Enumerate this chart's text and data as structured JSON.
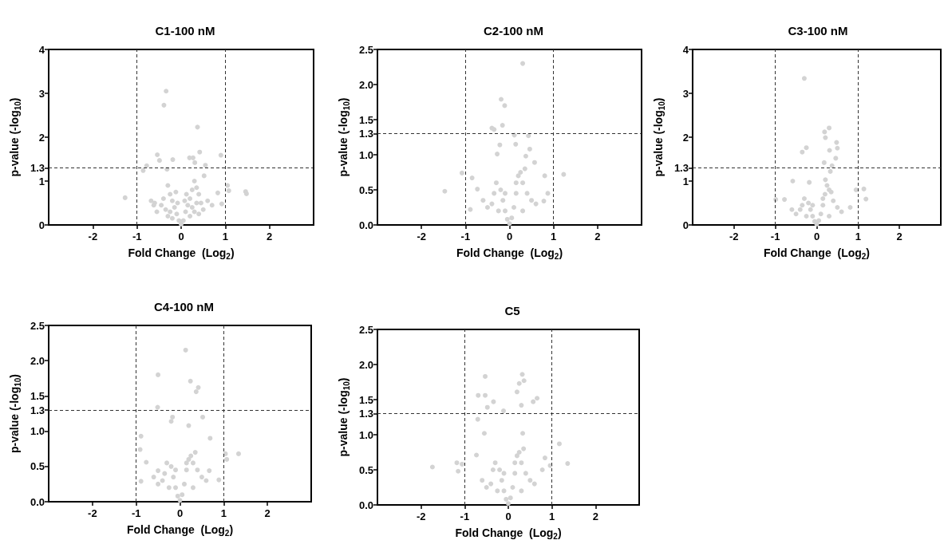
{
  "chart_data": [
    {
      "type": "scatter",
      "title": "C1-100 nM",
      "xlabel": "Fold Change  (Log$_{2}$)",
      "ylabel": "p-value (-log$_{10}$)",
      "color": "#d3d3d3",
      "marker": "circle",
      "grid": false,
      "x": [
        -0.34,
        -0.39,
        0.37,
        0.42,
        0.9,
        -0.54,
        0.19,
        0.27,
        -0.19,
        -0.49,
        -0.78,
        0.55,
        -0.86,
        1.05,
        1.08,
        1.46,
        1.48,
        -1.27,
        0.31,
        -0.32,
        0.52,
        0.83,
        0.92,
        -0.68,
        -0.62,
        -0.3,
        -0.25,
        -0.2,
        -0.15,
        -0.1,
        -0.05,
        0,
        0.05,
        0.1,
        0.15,
        0.2,
        0.25,
        0.3,
        0.35,
        0.4,
        0.45,
        -0.4,
        -0.45,
        -0.35,
        -0.3,
        -0.2,
        0.2,
        0.3,
        0.4,
        0.5,
        0.6,
        0.7,
        -0.55,
        -0.6,
        0.25,
        -0.25,
        0.12,
        -0.12,
        0.35,
        -0.08,
        0.08
      ],
      "values": [
        3.05,
        2.73,
        2.23,
        1.66,
        1.59,
        1.6,
        1.53,
        1.53,
        1.49,
        1.47,
        1.35,
        1.36,
        1.24,
        0.9,
        0.78,
        0.76,
        0.71,
        0.62,
        1.42,
        1.27,
        1.12,
        0.73,
        0.48,
        0.55,
        0.45,
        0.9,
        0.7,
        0.55,
        0.4,
        0.25,
        0.1,
        0.02,
        0.1,
        0.3,
        0.45,
        0.6,
        0.8,
        1.0,
        0.85,
        0.7,
        0.5,
        0.6,
        0.45,
        0.35,
        0.2,
        0.15,
        0.2,
        0.3,
        0.25,
        0.35,
        0.55,
        0.45,
        0.3,
        0.5,
        0.4,
        0.3,
        0.7,
        0.75,
        0.5,
        0.5,
        0.55
      ],
      "xlim": [
        -3,
        3
      ],
      "xticks": [
        -2,
        -1,
        0,
        1,
        2
      ],
      "ylim": [
        0,
        4
      ],
      "yticks": [
        0,
        1,
        {
          "value": 1.3,
          "label": "1.3"
        },
        2,
        3,
        4
      ],
      "ref_lines": [
        {
          "axis": "x",
          "value": -1,
          "color": "#333333",
          "line_style": "dashed"
        },
        {
          "axis": "x",
          "value": 1,
          "color": "#333333",
          "line_style": "dashed"
        },
        {
          "axis": "y",
          "value": 1.3,
          "color": "#333333",
          "line_style": "dashed"
        }
      ]
    },
    {
      "type": "scatter",
      "title": "C2-100 nM",
      "xlabel": "Fold Change  (Log$_{2}$)",
      "ylabel": "p-value (-log$_{10}$)",
      "color": "#d3d3d3",
      "marker": "circle",
      "grid": false,
      "x": [
        0.3,
        -0.19,
        -0.11,
        -0.16,
        -0.4,
        -0.35,
        0.11,
        0.43,
        -0.22,
        0.14,
        0.46,
        -0.28,
        1.23,
        -1.08,
        -1.47,
        -0.85,
        -0.89,
        0.8,
        0.87,
        0.78,
        -0.73,
        0.57,
        0.37,
        -0.3,
        -0.2,
        -0.15,
        -0.1,
        -0.05,
        0,
        0.05,
        0.1,
        0.15,
        0.2,
        0.25,
        0.3,
        0.4,
        0.5,
        -0.4,
        -0.5,
        -0.25,
        0.3,
        0.6,
        -0.6,
        0.15,
        -0.1,
        0.35,
        -0.35
      ],
      "values": [
        2.3,
        1.79,
        1.7,
        1.42,
        1.38,
        1.36,
        1.28,
        1.27,
        1.14,
        1.15,
        1.08,
        1.01,
        0.72,
        0.74,
        0.48,
        0.67,
        0.22,
        0.7,
        0.45,
        0.34,
        0.51,
        0.89,
        0.98,
        0.6,
        0.5,
        0.35,
        0.2,
        0.08,
        0.02,
        0.1,
        0.25,
        0.45,
        0.7,
        0.75,
        0.6,
        0.45,
        0.35,
        0.3,
        0.25,
        0.2,
        0.2,
        0.3,
        0.35,
        0.6,
        0.45,
        0.8,
        0.45
      ],
      "xlim": [
        -3,
        3
      ],
      "xticks": [
        -2,
        -1,
        0,
        1,
        2
      ],
      "ylim": [
        0,
        2.5
      ],
      "yticks": [
        {
          "value": 0,
          "label": "0.0"
        },
        0.5,
        {
          "value": 1,
          "label": "1.0"
        },
        1.3,
        1.5,
        {
          "value": 2,
          "label": "2.0"
        },
        2.5
      ],
      "ref_lines": [
        {
          "axis": "x",
          "value": -1,
          "color": "#333333",
          "line_style": "dashed"
        },
        {
          "axis": "x",
          "value": 1,
          "color": "#333333",
          "line_style": "dashed"
        },
        {
          "axis": "y",
          "value": 1.3,
          "color": "#333333",
          "line_style": "dashed"
        }
      ]
    },
    {
      "type": "scatter",
      "title": "C3-100 nM",
      "xlabel": "Fold Change  (Log$_{2}$)",
      "ylabel": "p-value (-log$_{10}$)",
      "color": "#d3d3d3",
      "marker": "circle",
      "grid": false,
      "x": [
        -0.3,
        0.3,
        0.19,
        0.21,
        -0.25,
        -0.35,
        0.48,
        0.5,
        0.31,
        0.46,
        0.18,
        0.37,
        0.33,
        0.95,
        1.14,
        1.19,
        -0.99,
        -0.78,
        -0.58,
        -0.18,
        0.81,
        0.21,
        -0.3,
        -0.2,
        -0.15,
        -0.1,
        -0.05,
        0,
        0.05,
        0.1,
        0.15,
        0.2,
        0.25,
        0.3,
        0.4,
        0.5,
        -0.4,
        -0.5,
        -0.25,
        0.3,
        0.6,
        -0.6,
        0.15,
        -0.1,
        0.35,
        -0.35
      ],
      "values": [
        3.34,
        2.21,
        2.12,
        1.99,
        1.76,
        1.66,
        1.88,
        1.75,
        1.7,
        1.52,
        1.42,
        1.35,
        1.22,
        0.8,
        0.82,
        0.59,
        0.58,
        0.58,
        1.0,
        0.97,
        0.4,
        1.03,
        0.6,
        0.5,
        0.35,
        0.2,
        0.08,
        0.02,
        0.1,
        0.25,
        0.45,
        0.7,
        0.9,
        0.8,
        0.55,
        0.4,
        0.35,
        0.25,
        0.2,
        0.2,
        0.3,
        0.35,
        0.6,
        0.45,
        0.75,
        0.45
      ],
      "xlim": [
        -3,
        3
      ],
      "xticks": [
        -2,
        -1,
        0,
        1,
        2
      ],
      "ylim": [
        0,
        4
      ],
      "yticks": [
        0,
        1,
        {
          "value": 1.3,
          "label": "1.3"
        },
        2,
        3,
        4
      ],
      "ref_lines": [
        {
          "axis": "x",
          "value": -1,
          "color": "#333333",
          "line_style": "dashed"
        },
        {
          "axis": "x",
          "value": 1,
          "color": "#333333",
          "line_style": "dashed"
        },
        {
          "axis": "y",
          "value": 1.3,
          "color": "#333333",
          "line_style": "dashed"
        }
      ]
    },
    {
      "type": "scatter",
      "title": "C4-100 nM",
      "xlabel": "Fold Change  (Log$_{2}$)",
      "ylabel": "p-value (-log$_{10}$)",
      "color": "#d3d3d3",
      "marker": "circle",
      "grid": false,
      "x": [
        0.13,
        -0.5,
        0.24,
        0.42,
        0.37,
        -0.51,
        0.52,
        -0.17,
        -0.2,
        0.2,
        -0.89,
        0.69,
        1.34,
        1.04,
        1.07,
        -0.91,
        -0.77,
        -0.89,
        0.67,
        0.89,
        -0.5,
        -0.3,
        -0.2,
        -0.15,
        -0.1,
        -0.05,
        0,
        0.05,
        0.1,
        0.15,
        0.2,
        0.25,
        0.3,
        0.4,
        0.5,
        -0.4,
        -0.5,
        -0.25,
        0.3,
        0.6,
        -0.6,
        0.15,
        -0.1,
        0.35,
        -0.35
      ],
      "values": [
        2.15,
        1.8,
        1.71,
        1.62,
        1.56,
        1.34,
        1.2,
        1.2,
        1.14,
        1.08,
        0.93,
        0.9,
        0.68,
        0.68,
        0.6,
        0.74,
        0.56,
        0.29,
        0.44,
        0.31,
        0.44,
        0.55,
        0.5,
        0.35,
        0.2,
        0.08,
        0.02,
        0.1,
        0.25,
        0.45,
        0.6,
        0.65,
        0.55,
        0.45,
        0.35,
        0.3,
        0.25,
        0.2,
        0.2,
        0.3,
        0.35,
        0.55,
        0.45,
        0.7,
        0.4
      ],
      "xlim": [
        -3,
        3
      ],
      "xticks": [
        -2,
        -1,
        0,
        1,
        2
      ],
      "ylim": [
        0,
        2.5
      ],
      "yticks": [
        {
          "value": 0,
          "label": "0.0"
        },
        0.5,
        {
          "value": 1,
          "label": "1.0"
        },
        1.3,
        1.5,
        {
          "value": 2,
          "label": "2.0"
        },
        2.5
      ],
      "ref_lines": [
        {
          "axis": "x",
          "value": -1,
          "color": "#333333",
          "line_style": "dashed"
        },
        {
          "axis": "x",
          "value": 1,
          "color": "#333333",
          "line_style": "dashed"
        },
        {
          "axis": "y",
          "value": 1.3,
          "color": "#333333",
          "line_style": "dashed"
        }
      ]
    },
    {
      "type": "scatter",
      "title": "C5",
      "xlabel": "Fold Change  (Log$_{2}$)",
      "ylabel": "p-value (-log$_{10}$)",
      "color": "#d3d3d3",
      "marker": "circle",
      "grid": false,
      "x": [
        -0.53,
        0.32,
        0.36,
        0.25,
        0.2,
        -0.69,
        -0.53,
        0.66,
        0.57,
        -0.34,
        0.3,
        -0.48,
        -0.11,
        -0.7,
        1.17,
        1.36,
        -1.74,
        -1.18,
        -1.06,
        -1.15,
        0.84,
        0.78,
        0.96,
        -0.55,
        0.33,
        -0.73,
        -0.3,
        -0.2,
        -0.15,
        -0.1,
        -0.05,
        0,
        0.05,
        0.1,
        0.15,
        0.2,
        0.25,
        0.3,
        0.4,
        0.5,
        -0.4,
        -0.5,
        -0.25,
        0.3,
        0.6,
        -0.6,
        0.15,
        -0.1,
        0.35,
        -0.35
      ],
      "values": [
        1.83,
        1.86,
        1.77,
        1.73,
        1.61,
        1.56,
        1.56,
        1.52,
        1.47,
        1.47,
        1.42,
        1.39,
        1.34,
        1.22,
        0.87,
        0.59,
        0.54,
        0.6,
        0.58,
        0.48,
        0.67,
        0.5,
        0.56,
        1.02,
        1.02,
        0.71,
        0.6,
        0.5,
        0.35,
        0.2,
        0.08,
        0.02,
        0.1,
        0.25,
        0.45,
        0.7,
        0.75,
        0.6,
        0.45,
        0.35,
        0.3,
        0.25,
        0.2,
        0.2,
        0.3,
        0.35,
        0.6,
        0.45,
        0.8,
        0.5
      ],
      "xlim": [
        -3,
        3
      ],
      "xticks": [
        -2,
        -1,
        0,
        1,
        2
      ],
      "ylim": [
        0,
        2.5
      ],
      "yticks": [
        {
          "value": 0,
          "label": "0.0"
        },
        0.5,
        {
          "value": 1,
          "label": "1.0"
        },
        1.3,
        1.5,
        {
          "value": 2,
          "label": "2.0"
        },
        2.5
      ],
      "ref_lines": [
        {
          "axis": "x",
          "value": -1,
          "color": "#333333",
          "line_style": "dashed"
        },
        {
          "axis": "x",
          "value": 1,
          "color": "#333333",
          "line_style": "dashed"
        },
        {
          "axis": "y",
          "value": 1.3,
          "color": "#333333",
          "line_style": "dashed"
        }
      ]
    }
  ]
}
